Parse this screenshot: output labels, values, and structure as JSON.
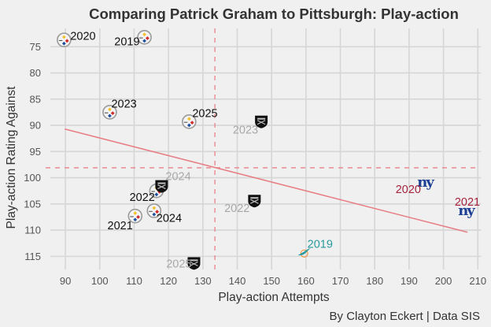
{
  "chart_data": {
    "type": "scatter",
    "title": "Comparing Patrick Graham to Pittsburgh: Play-action",
    "xlabel": "Play-action Attempts",
    "ylabel": "Play-action Rating Against",
    "caption": "By Clayton Eckert | Data SIS",
    "xlim": [
      87,
      212
    ],
    "ylim": [
      117.5,
      71.5
    ],
    "y_reversed": true,
    "grid": true,
    "x_ticks": [
      90,
      100,
      110,
      120,
      130,
      140,
      150,
      160,
      170,
      180,
      190,
      200,
      210
    ],
    "y_ticks": [
      75,
      80,
      85,
      90,
      95,
      100,
      105,
      110,
      115
    ],
    "reference_lines": {
      "x_mean": 133.5,
      "y_mean": 98.1,
      "color": "#e8838a",
      "style": "dashed"
    },
    "trend_line": {
      "x": [
        89.8,
        207
      ],
      "y": [
        90.7,
        110.4
      ],
      "color": "#e87e84"
    },
    "series": [
      {
        "name": "Pittsburgh Steelers",
        "icon": "steelers-logo-icon",
        "label_color": "#111111",
        "points": [
          {
            "label": "2019",
            "x": 113,
            "y": 73.2
          },
          {
            "label": "2020",
            "x": 89.6,
            "y": 73.7
          },
          {
            "label": "2021",
            "x": 110.3,
            "y": 107.3
          },
          {
            "label": "2022",
            "x": 116.5,
            "y": 102.5
          },
          {
            "label": "2023",
            "x": 102.9,
            "y": 87.5
          },
          {
            "label": "2024",
            "x": 115.8,
            "y": 106.3
          },
          {
            "label": "2025",
            "x": 126,
            "y": 89.3
          }
        ]
      },
      {
        "name": "Las Vegas Raiders",
        "icon": "raiders-logo-icon",
        "label_color": "#a8a8a8",
        "points": [
          {
            "label": "2022",
            "x": 145,
            "y": 104.3
          },
          {
            "label": "2023",
            "x": 147,
            "y": 89.2
          },
          {
            "label": "2024",
            "x": 118,
            "y": 101.5
          },
          {
            "label": "2025",
            "x": 127.4,
            "y": 116.2
          }
        ]
      },
      {
        "name": "New York Giants",
        "icon": "giants-logo-icon",
        "label_color": "#a6233f",
        "points": [
          {
            "label": "2020",
            "x": 194.6,
            "y": 100.8
          },
          {
            "label": "2021",
            "x": 206.5,
            "y": 106.2
          }
        ]
      },
      {
        "name": "Miami Dolphins",
        "icon": "dolphins-logo-icon",
        "label_color": "#2a9aa0",
        "points": [
          {
            "label": "2019",
            "x": 159.5,
            "y": 114.3
          }
        ]
      }
    ]
  }
}
